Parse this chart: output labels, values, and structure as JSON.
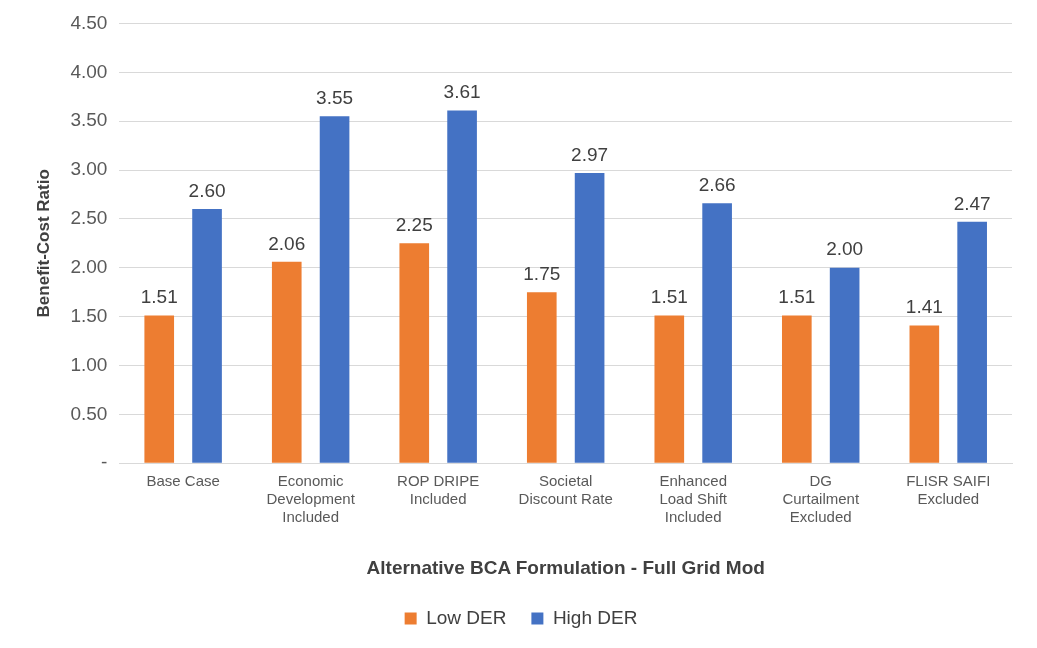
{
  "chart_data": {
    "type": "bar",
    "xlabel": "Alternative BCA Formulation - Full Grid Mod",
    "ylabel": "Benefit-Cost Ratio",
    "categories": [
      "Base Case",
      "Economic\nDevelopment\nIncluded",
      "ROP DRIPE\nIncluded",
      "Societal\nDiscount Rate",
      "Enhanced\nLoad Shift\nIncluded",
      "DG\nCurtailment\nExcluded",
      "FLISR SAIFI\nExcluded"
    ],
    "series": [
      {
        "name": "Low DER",
        "color": "#ed7d31",
        "values": [
          1.51,
          2.06,
          2.25,
          1.75,
          1.51,
          1.51,
          1.41
        ],
        "value_labels": [
          "1.51",
          "2.06",
          "2.25",
          "1.75",
          "1.51",
          "1.51",
          "1.41"
        ]
      },
      {
        "name": "High DER",
        "color": "#4472c4",
        "values": [
          2.6,
          3.55,
          3.61,
          2.97,
          2.66,
          2.0,
          2.47
        ],
        "value_labels": [
          "2.60",
          "3.55",
          "3.61",
          "2.97",
          "2.66",
          "2.00",
          "2.47"
        ]
      }
    ],
    "ylim": [
      0,
      4.5
    ],
    "yticks": [
      {
        "value": 0,
        "label": "-"
      },
      {
        "value": 0.5,
        "label": "0.50"
      },
      {
        "value": 1,
        "label": "1.00"
      },
      {
        "value": 1.5,
        "label": "1.50"
      },
      {
        "value": 2,
        "label": "2.00"
      },
      {
        "value": 2.5,
        "label": "2.50"
      },
      {
        "value": 3,
        "label": "3.00"
      },
      {
        "value": 3.5,
        "label": "3.50"
      },
      {
        "value": 4,
        "label": "4.00"
      },
      {
        "value": 4.5,
        "label": "4.50"
      }
    ],
    "grid": "y",
    "legend": "bottom"
  }
}
